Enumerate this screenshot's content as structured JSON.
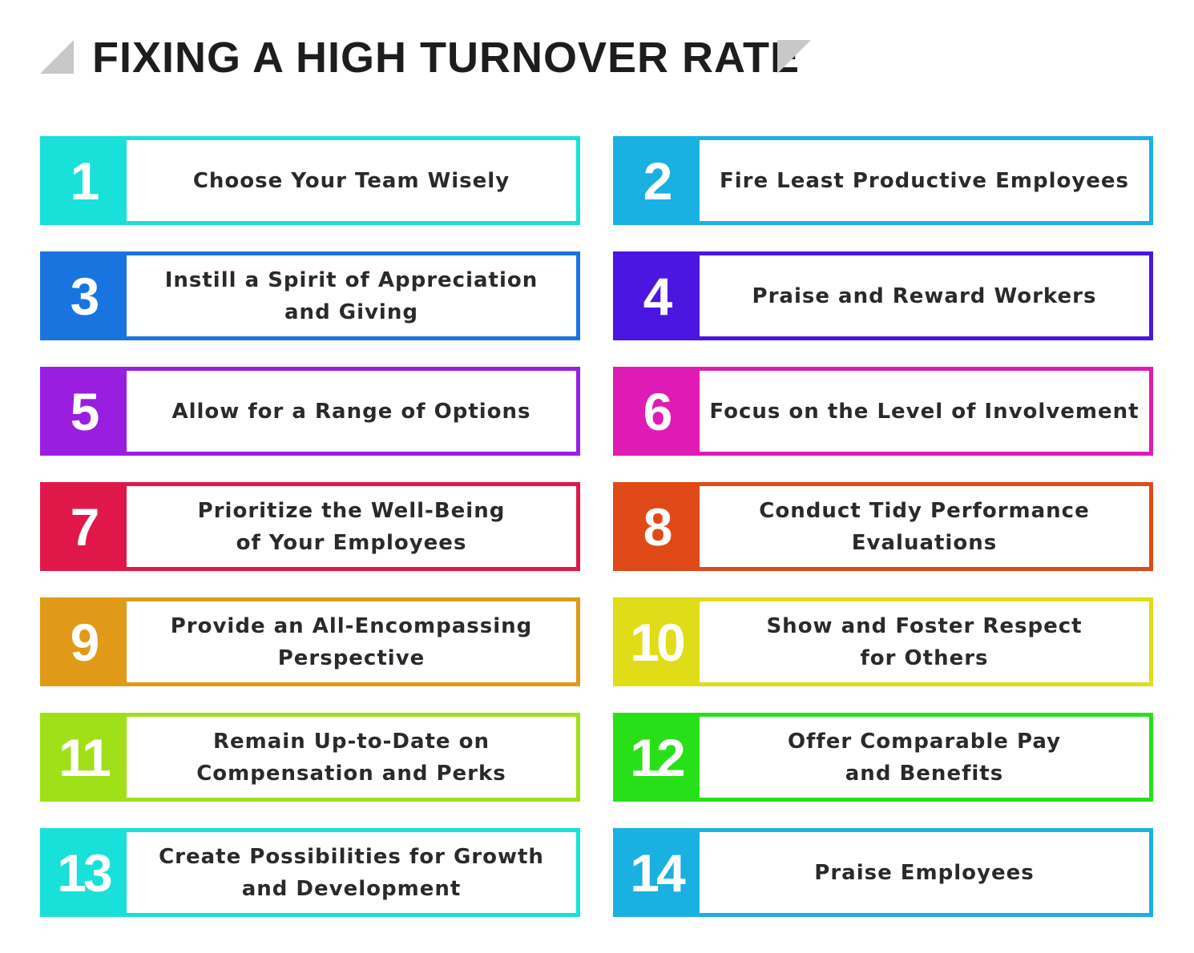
{
  "title": "FIXING A HIGH TURNOVER RATE",
  "items": [
    {
      "number": "1",
      "lines": [
        "Choose Your Team Wisely"
      ],
      "color": "#19e0d8"
    },
    {
      "number": "2",
      "lines": [
        "Fire Least Productive Employees"
      ],
      "color": "#1ab0e2"
    },
    {
      "number": "3",
      "lines": [
        "Instill a Spirit of Appreciation",
        "and Giving"
      ],
      "color": "#1a74e0"
    },
    {
      "number": "4",
      "lines": [
        "Praise and Reward Workers"
      ],
      "color": "#4a16e0"
    },
    {
      "number": "5",
      "lines": [
        "Allow for a Range of Options"
      ],
      "color": "#9a1ee0"
    },
    {
      "number": "6",
      "lines": [
        "Focus on the Level of Involvement"
      ],
      "color": "#e01ab4"
    },
    {
      "number": "7",
      "lines": [
        "Prioritize the Well-Being",
        "of Your Employees"
      ],
      "color": "#e0184a"
    },
    {
      "number": "8",
      "lines": [
        "Conduct Tidy Performance",
        "Evaluations"
      ],
      "color": "#e04a18"
    },
    {
      "number": "9",
      "lines": [
        "Provide an All-Encompassing",
        "Perspective"
      ],
      "color": "#e09a18"
    },
    {
      "number": "10",
      "lines": [
        "Show and Foster Respect",
        "for Others"
      ],
      "color": "#e0dc18"
    },
    {
      "number": "11",
      "lines": [
        "Remain Up-to-Date on",
        "Compensation and Perks"
      ],
      "color": "#a0e018"
    },
    {
      "number": "12",
      "lines": [
        "Offer Comparable Pay",
        "and Benefits"
      ],
      "color": "#28e018"
    },
    {
      "number": "13",
      "lines": [
        "Create Possibilities for Growth",
        "and Development"
      ],
      "color": "#19e0d8"
    },
    {
      "number": "14",
      "lines": [
        "Praise Employees"
      ],
      "color": "#1ab0e2"
    }
  ]
}
